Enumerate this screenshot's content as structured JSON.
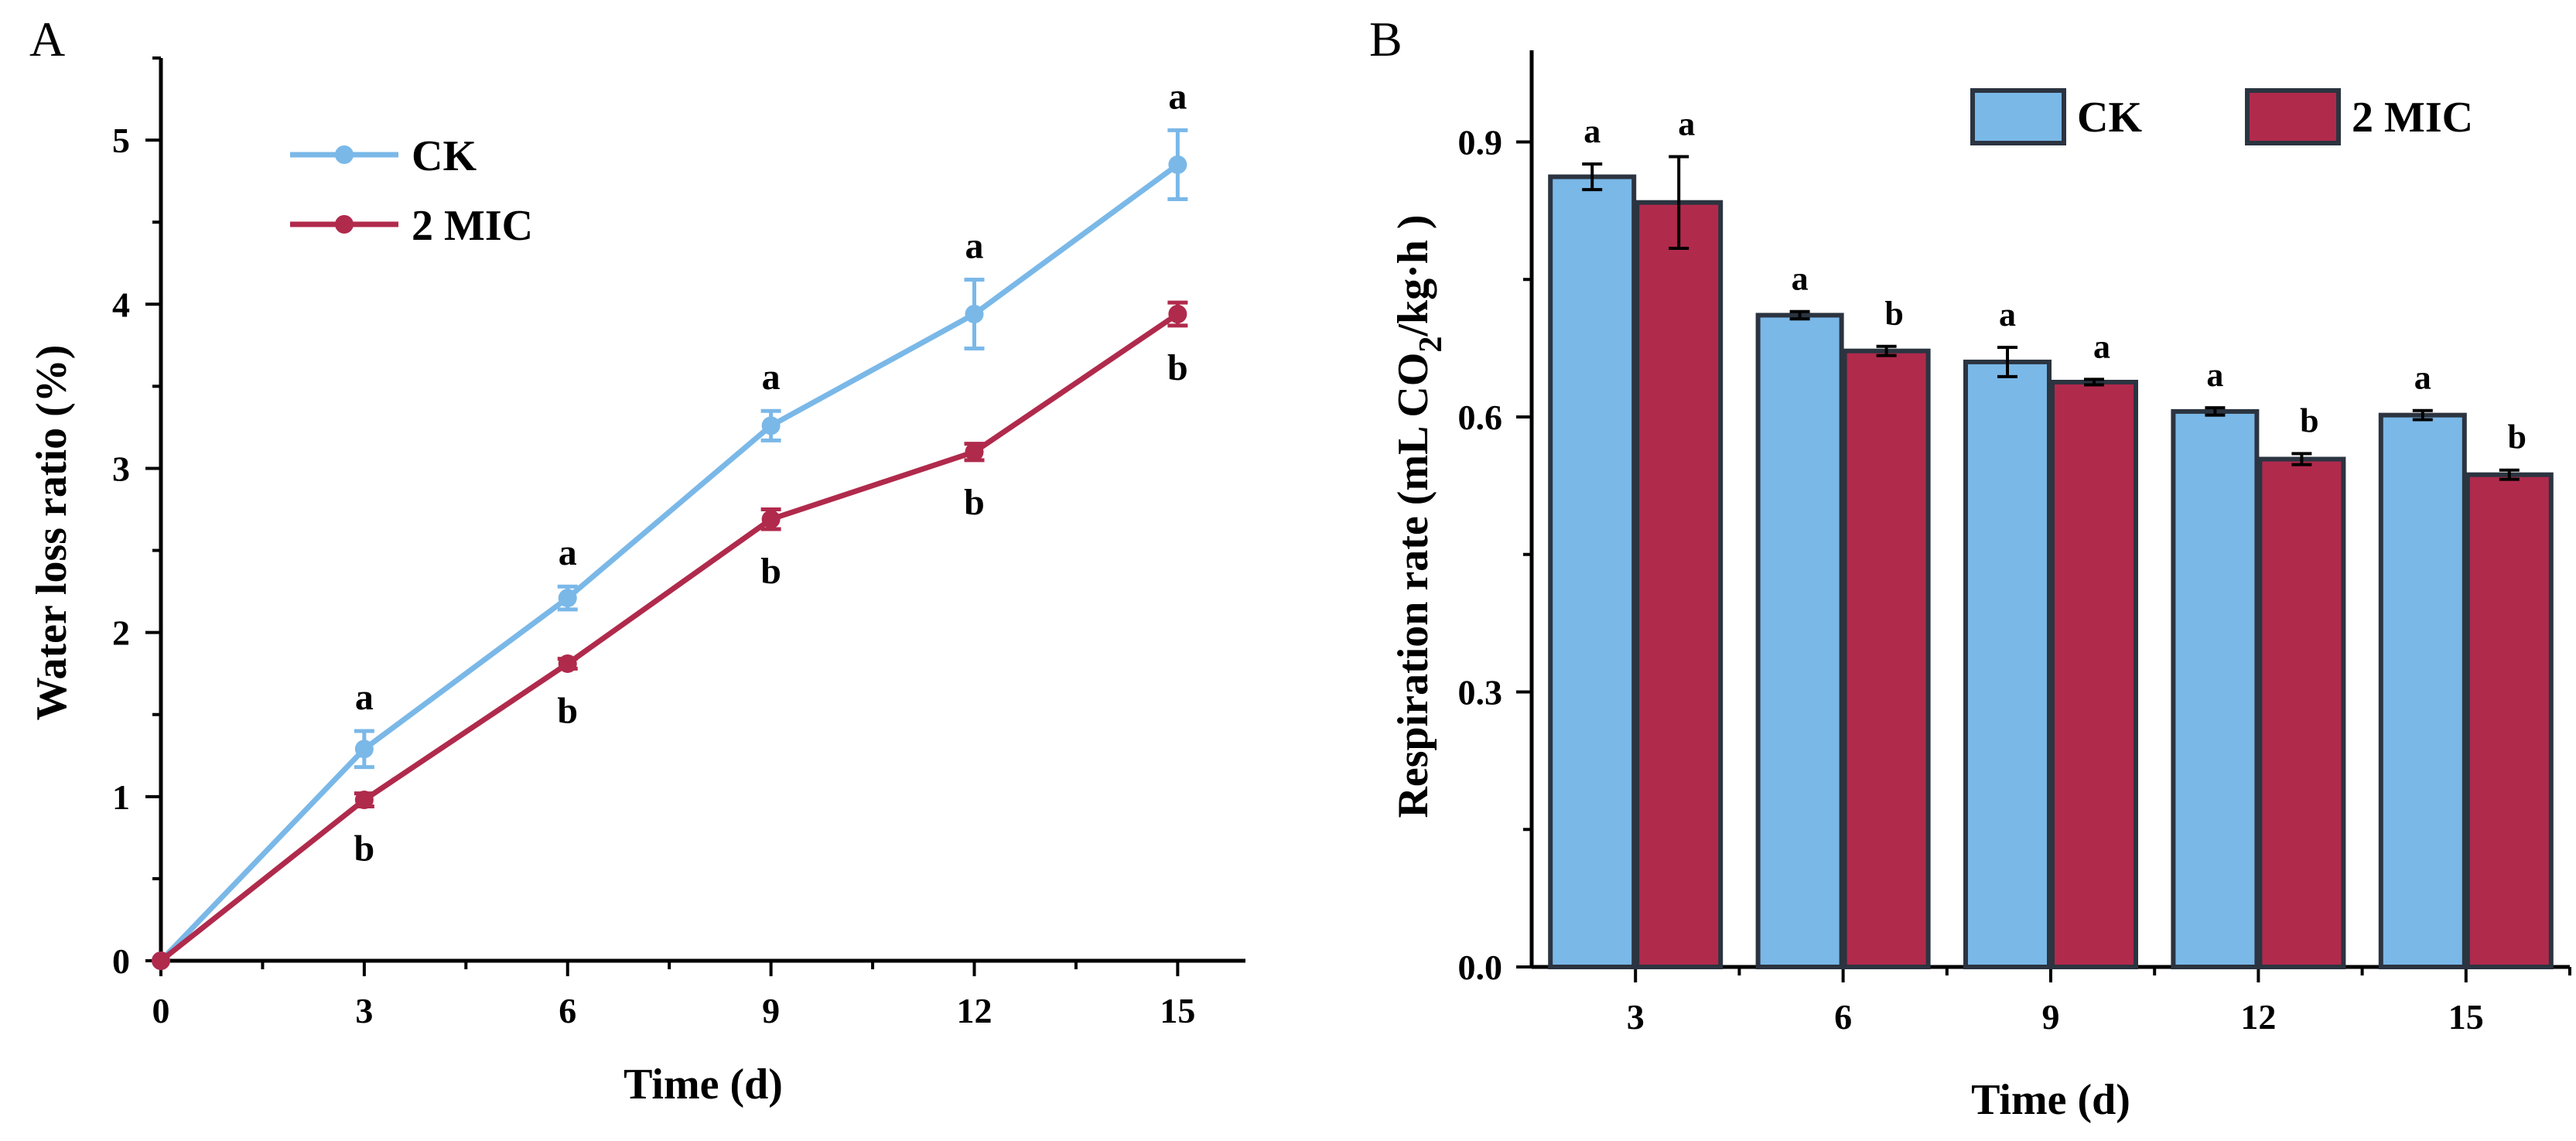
{
  "colors": {
    "ck": "#7ab8e8",
    "mic": "#b02a4c",
    "bar_stroke": "#2b3440",
    "axis": "#000000"
  },
  "chart_data": [
    {
      "panel_label": "A",
      "type": "line",
      "xlabel": "Time (d)",
      "ylabel": "Water loss ratio (%)",
      "xlim": [
        0,
        16
      ],
      "ylim": [
        0,
        5.5
      ],
      "x_ticks": [
        0,
        3,
        6,
        9,
        12,
        15
      ],
      "y_ticks": [
        0,
        1,
        2,
        3,
        4,
        5
      ],
      "grid": false,
      "legend_position": "top-left",
      "x": [
        0,
        3,
        6,
        9,
        12,
        15
      ],
      "series": [
        {
          "name": "CK",
          "color": "#7ab8e8",
          "values": [
            0,
            1.29,
            2.21,
            3.26,
            3.94,
            4.85
          ],
          "errors": [
            0,
            0.11,
            0.07,
            0.09,
            0.21,
            0.21
          ],
          "letters": [
            "",
            "a",
            "a",
            "a",
            "a",
            "a"
          ]
        },
        {
          "name": "2 MIC",
          "color": "#b02a4c",
          "values": [
            0,
            0.98,
            1.81,
            2.69,
            3.1,
            3.94
          ],
          "errors": [
            0,
            0.04,
            0.03,
            0.06,
            0.05,
            0.07
          ],
          "letters": [
            "",
            "b",
            "b",
            "b",
            "b",
            "b"
          ]
        }
      ]
    },
    {
      "panel_label": "B",
      "type": "bar",
      "xlabel": "Time (d)",
      "ylabel_main": "Respiration rate (mL CO",
      "ylabel_sub": "2",
      "ylabel_tail": "/kg·h )",
      "categories": [
        "3",
        "6",
        "9",
        "12",
        "15"
      ],
      "ylim": [
        0,
        1.0
      ],
      "y_ticks": [
        "0.0",
        "0.3",
        "0.6",
        "0.9"
      ],
      "grid": false,
      "legend_position": "top-right",
      "series": [
        {
          "name": "CK",
          "color": "#7ab8e8",
          "values": [
            0.862,
            0.711,
            0.66,
            0.606,
            0.602
          ],
          "errors": [
            0.014,
            0.004,
            0.016,
            0.004,
            0.005
          ],
          "letters": [
            "a",
            "a",
            "a",
            "a",
            "a"
          ]
        },
        {
          "name": "2 MIC",
          "color": "#b02a4c",
          "values": [
            0.834,
            0.672,
            0.638,
            0.554,
            0.537
          ],
          "errors": [
            0.05,
            0.005,
            0.003,
            0.006,
            0.005
          ],
          "letters": [
            "a",
            "b",
            "a",
            "b",
            "b"
          ]
        }
      ]
    }
  ]
}
